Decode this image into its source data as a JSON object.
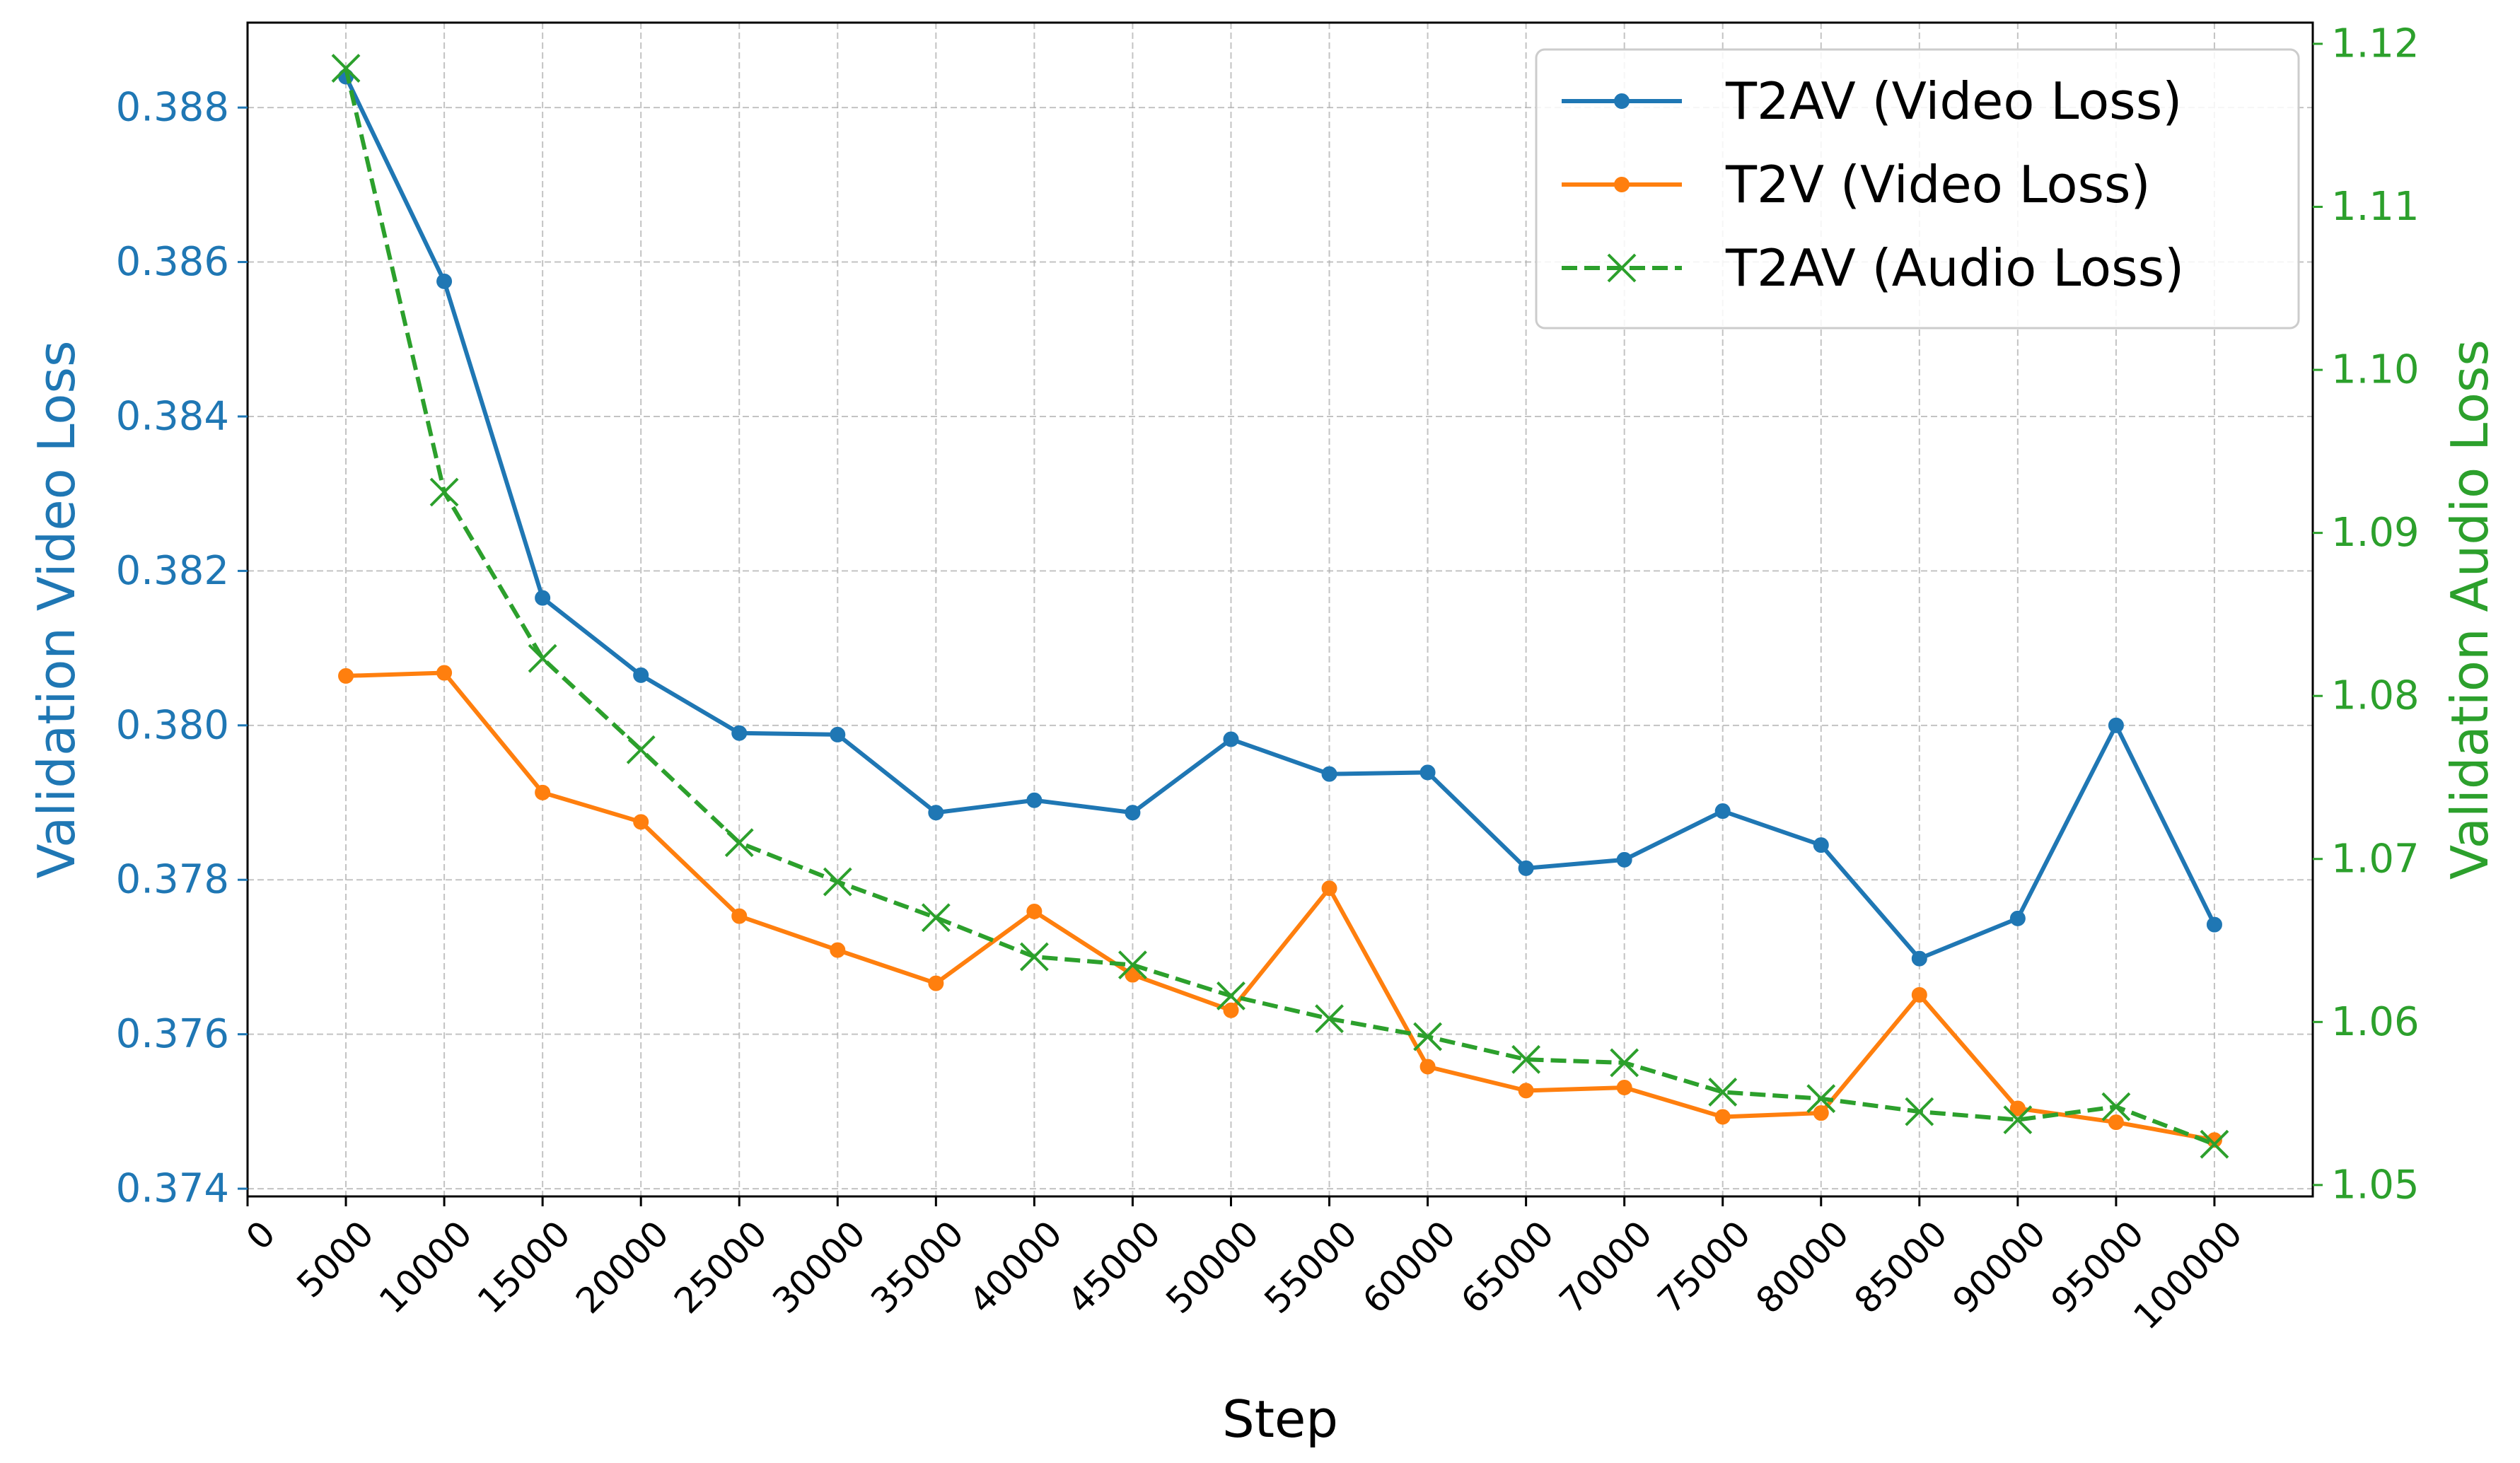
{
  "chart_data": {
    "type": "line",
    "xlabel": "Step",
    "ylabel_left": "Validation Video Loss",
    "ylabel_right": "Validation Audio Loss",
    "xlim": [
      0,
      105000
    ],
    "ylim_left": [
      0.3739,
      0.3891
    ],
    "ylim_right": [
      1.0493,
      1.1213
    ],
    "x_ticks": [
      0,
      5000,
      10000,
      15000,
      20000,
      25000,
      30000,
      35000,
      40000,
      45000,
      50000,
      55000,
      60000,
      65000,
      70000,
      75000,
      80000,
      85000,
      90000,
      95000,
      100000
    ],
    "x_tick_labels": [
      "0",
      "5000",
      "10000",
      "15000",
      "20000",
      "25000",
      "30000",
      "35000",
      "40000",
      "45000",
      "50000",
      "55000",
      "60000",
      "65000",
      "70000",
      "75000",
      "80000",
      "85000",
      "90000",
      "95000",
      "100000"
    ],
    "y_left_ticks": [
      0.374,
      0.376,
      0.378,
      0.38,
      0.382,
      0.384,
      0.386,
      0.388
    ],
    "y_left_tick_labels": [
      "0.374",
      "0.376",
      "0.378",
      "0.380",
      "0.382",
      "0.384",
      "0.386",
      "0.388"
    ],
    "y_right_ticks": [
      1.05,
      1.06,
      1.07,
      1.08,
      1.09,
      1.1,
      1.11,
      1.12
    ],
    "y_right_tick_labels": [
      "1.05",
      "1.06",
      "1.07",
      "1.08",
      "1.09",
      "1.10",
      "1.11",
      "1.12"
    ],
    "grid": true,
    "legend_position": "top-right",
    "x": [
      5000,
      10000,
      15000,
      20000,
      25000,
      30000,
      35000,
      40000,
      45000,
      50000,
      55000,
      60000,
      65000,
      70000,
      75000,
      80000,
      85000,
      90000,
      95000,
      100000
    ],
    "series": [
      {
        "name": "T2AV (Video Loss)",
        "axis": "left",
        "color": "#1f77b4",
        "style": "solid",
        "marker": "circle",
        "values": [
          0.3884,
          0.38575,
          0.38165,
          0.38065,
          0.3799,
          0.37988,
          0.37887,
          0.37903,
          0.37887,
          0.37982,
          0.37937,
          0.37939,
          0.37815,
          0.37826,
          0.37889,
          0.37845,
          0.37698,
          0.3775,
          0.38,
          0.37742
        ]
      },
      {
        "name": "T2V (Video Loss)",
        "axis": "left",
        "color": "#ff7f0e",
        "style": "solid",
        "marker": "circle",
        "values": [
          0.38064,
          0.38068,
          0.37913,
          0.37875,
          0.37753,
          0.37709,
          0.37666,
          0.37759,
          0.37677,
          0.37631,
          0.37789,
          0.37558,
          0.37527,
          0.37531,
          0.37493,
          0.37498,
          0.37651,
          0.37504,
          0.37486,
          0.37463
        ]
      },
      {
        "name": "T2AV (Audio Loss)",
        "axis": "right",
        "color": "#2ca02c",
        "style": "dashed",
        "marker": "x",
        "values": [
          1.1185,
          1.0925,
          1.0823,
          1.0767,
          1.071,
          1.0686,
          1.0664,
          1.064,
          1.0635,
          1.0616,
          1.0602,
          1.0591,
          1.0577,
          1.0575,
          1.0557,
          1.0553,
          1.0545,
          1.054,
          1.0548,
          1.0525
        ]
      }
    ]
  }
}
